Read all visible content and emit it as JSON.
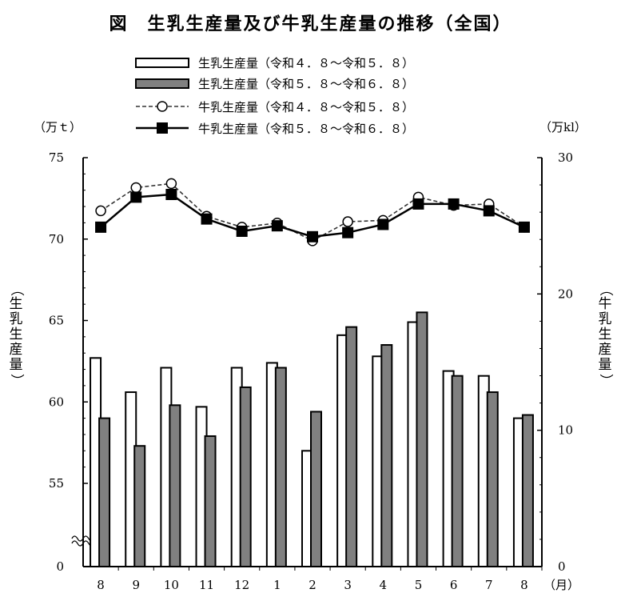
{
  "chart_data": {
    "type": "bar+line",
    "title": "図　生乳生産量及び牛乳生産量の推移（全国）",
    "left_axis": {
      "unit": "（万ｔ）",
      "label": "（生乳生産量）",
      "ticks": [
        "75",
        "70",
        "65",
        "60",
        "55",
        "0"
      ],
      "display_range": [
        53,
        75
      ],
      "axis_break": true
    },
    "right_axis": {
      "unit": "（万kl）",
      "label": "（牛乳生産量）",
      "ticks": [
        "30",
        "20",
        "10",
        "0"
      ],
      "range": [
        0,
        30
      ]
    },
    "x_unit": "（月）",
    "categories": [
      "8",
      "9",
      "10",
      "11",
      "12",
      "1",
      "2",
      "3",
      "4",
      "5",
      "6",
      "7",
      "8"
    ],
    "series": [
      {
        "name": "生乳生産量（令和４．８～令和５．８）",
        "kind": "bar",
        "axis": "left",
        "style": "white",
        "values": [
          62.7,
          60.6,
          62.1,
          59.7,
          62.1,
          62.4,
          57.0,
          64.1,
          62.8,
          64.9,
          61.9,
          61.6,
          59.0
        ]
      },
      {
        "name": "生乳生産量（令和５．８～令和６．８）",
        "kind": "bar",
        "axis": "left",
        "style": "gray",
        "values": [
          59.0,
          57.3,
          59.8,
          57.9,
          60.9,
          62.1,
          59.4,
          64.6,
          63.5,
          65.5,
          61.6,
          60.6,
          59.2
        ]
      },
      {
        "name": "牛乳生産量（令和４．８～令和５．８）",
        "kind": "line",
        "axis": "right",
        "style": "dashed-circle",
        "values": [
          26.1,
          27.8,
          28.1,
          25.7,
          24.9,
          25.2,
          23.9,
          25.3,
          25.4,
          27.1,
          26.5,
          26.6,
          24.9
        ]
      },
      {
        "name": "牛乳生産量（令和５．８～令和６．８）",
        "kind": "line",
        "axis": "right",
        "style": "solid-square",
        "values": [
          24.9,
          27.1,
          27.3,
          25.5,
          24.6,
          25.0,
          24.2,
          24.5,
          25.1,
          26.6,
          26.6,
          26.1,
          24.9
        ]
      }
    ]
  }
}
